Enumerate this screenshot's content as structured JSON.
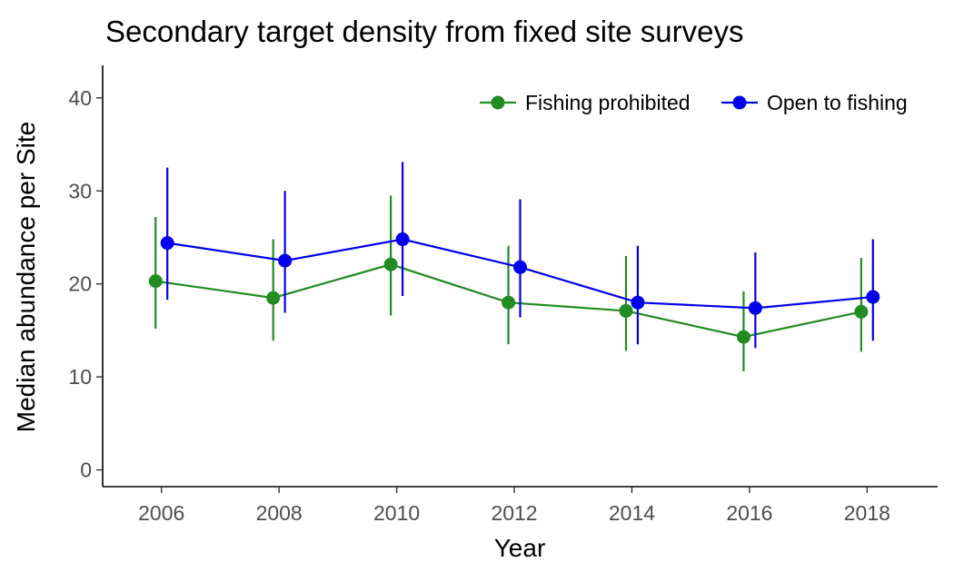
{
  "chart_data": {
    "type": "line",
    "title": "Secondary target density from fixed site surveys",
    "xlabel": "Year",
    "ylabel": "Median abundance per Site",
    "x": [
      2006,
      2008,
      2010,
      2012,
      2014,
      2016,
      2018
    ],
    "x_ticks": [
      2006,
      2008,
      2010,
      2012,
      2014,
      2016,
      2018
    ],
    "xlim": [
      2005.0,
      2019.2
    ],
    "y_ticks": [
      0,
      10,
      20,
      30,
      40
    ],
    "ylim": [
      -1.8,
      43.5
    ],
    "grid": false,
    "legend_position": "top-right",
    "series": [
      {
        "name": "Fishing prohibited",
        "color": "#228B22",
        "offset_years": -0.1,
        "values": [
          20.3,
          18.5,
          22.1,
          18.0,
          17.1,
          14.3,
          17.0
        ],
        "lower": [
          15.2,
          13.9,
          16.6,
          13.5,
          12.8,
          10.6,
          12.7
        ],
        "upper": [
          27.2,
          24.8,
          29.5,
          24.1,
          23.0,
          19.2,
          22.8
        ]
      },
      {
        "name": "Open to fishing",
        "color": "#0000EE",
        "offset_years": 0.1,
        "values": [
          24.4,
          22.5,
          24.8,
          21.8,
          18.0,
          17.4,
          18.6
        ],
        "lower": [
          18.3,
          16.9,
          18.7,
          16.4,
          13.5,
          13.1,
          13.9
        ],
        "upper": [
          32.5,
          30.0,
          33.1,
          29.1,
          24.1,
          23.4,
          24.8
        ]
      }
    ]
  }
}
